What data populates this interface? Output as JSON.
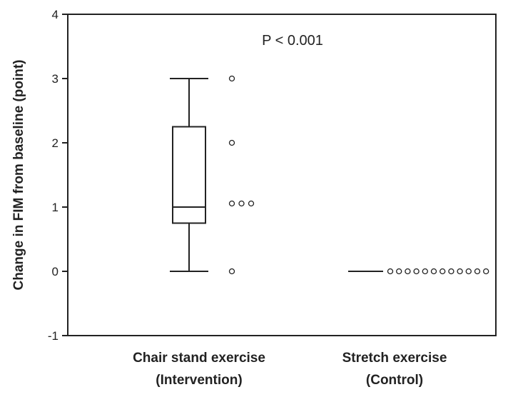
{
  "chart_data": {
    "type": "box",
    "ylabel": "Change in FIM from baseline (point)",
    "ylim": [
      -1,
      4
    ],
    "yticks": [
      "-1",
      "0",
      "1",
      "2",
      "3",
      "4"
    ],
    "annotation": "P < 0.001",
    "groups": [
      {
        "label_line1": "Chair stand exercise",
        "label_line2": "(Intervention)",
        "box": {
          "min": 0,
          "q1": 0.75,
          "median": 1,
          "q3": 2.25,
          "max": 3
        },
        "points": [
          3,
          2,
          1,
          1,
          1,
          0
        ]
      },
      {
        "label_line1": "Stretch exercise",
        "label_line2": "(Control)",
        "box": {
          "min": 0,
          "q1": 0,
          "median": 0,
          "q3": 0,
          "max": 0
        },
        "points": [
          0,
          0,
          0,
          0,
          0,
          0,
          0,
          0,
          0,
          0,
          0,
          0
        ]
      }
    ],
    "colors": {
      "axis": "#222222",
      "point_fill": "#ffffff"
    }
  }
}
